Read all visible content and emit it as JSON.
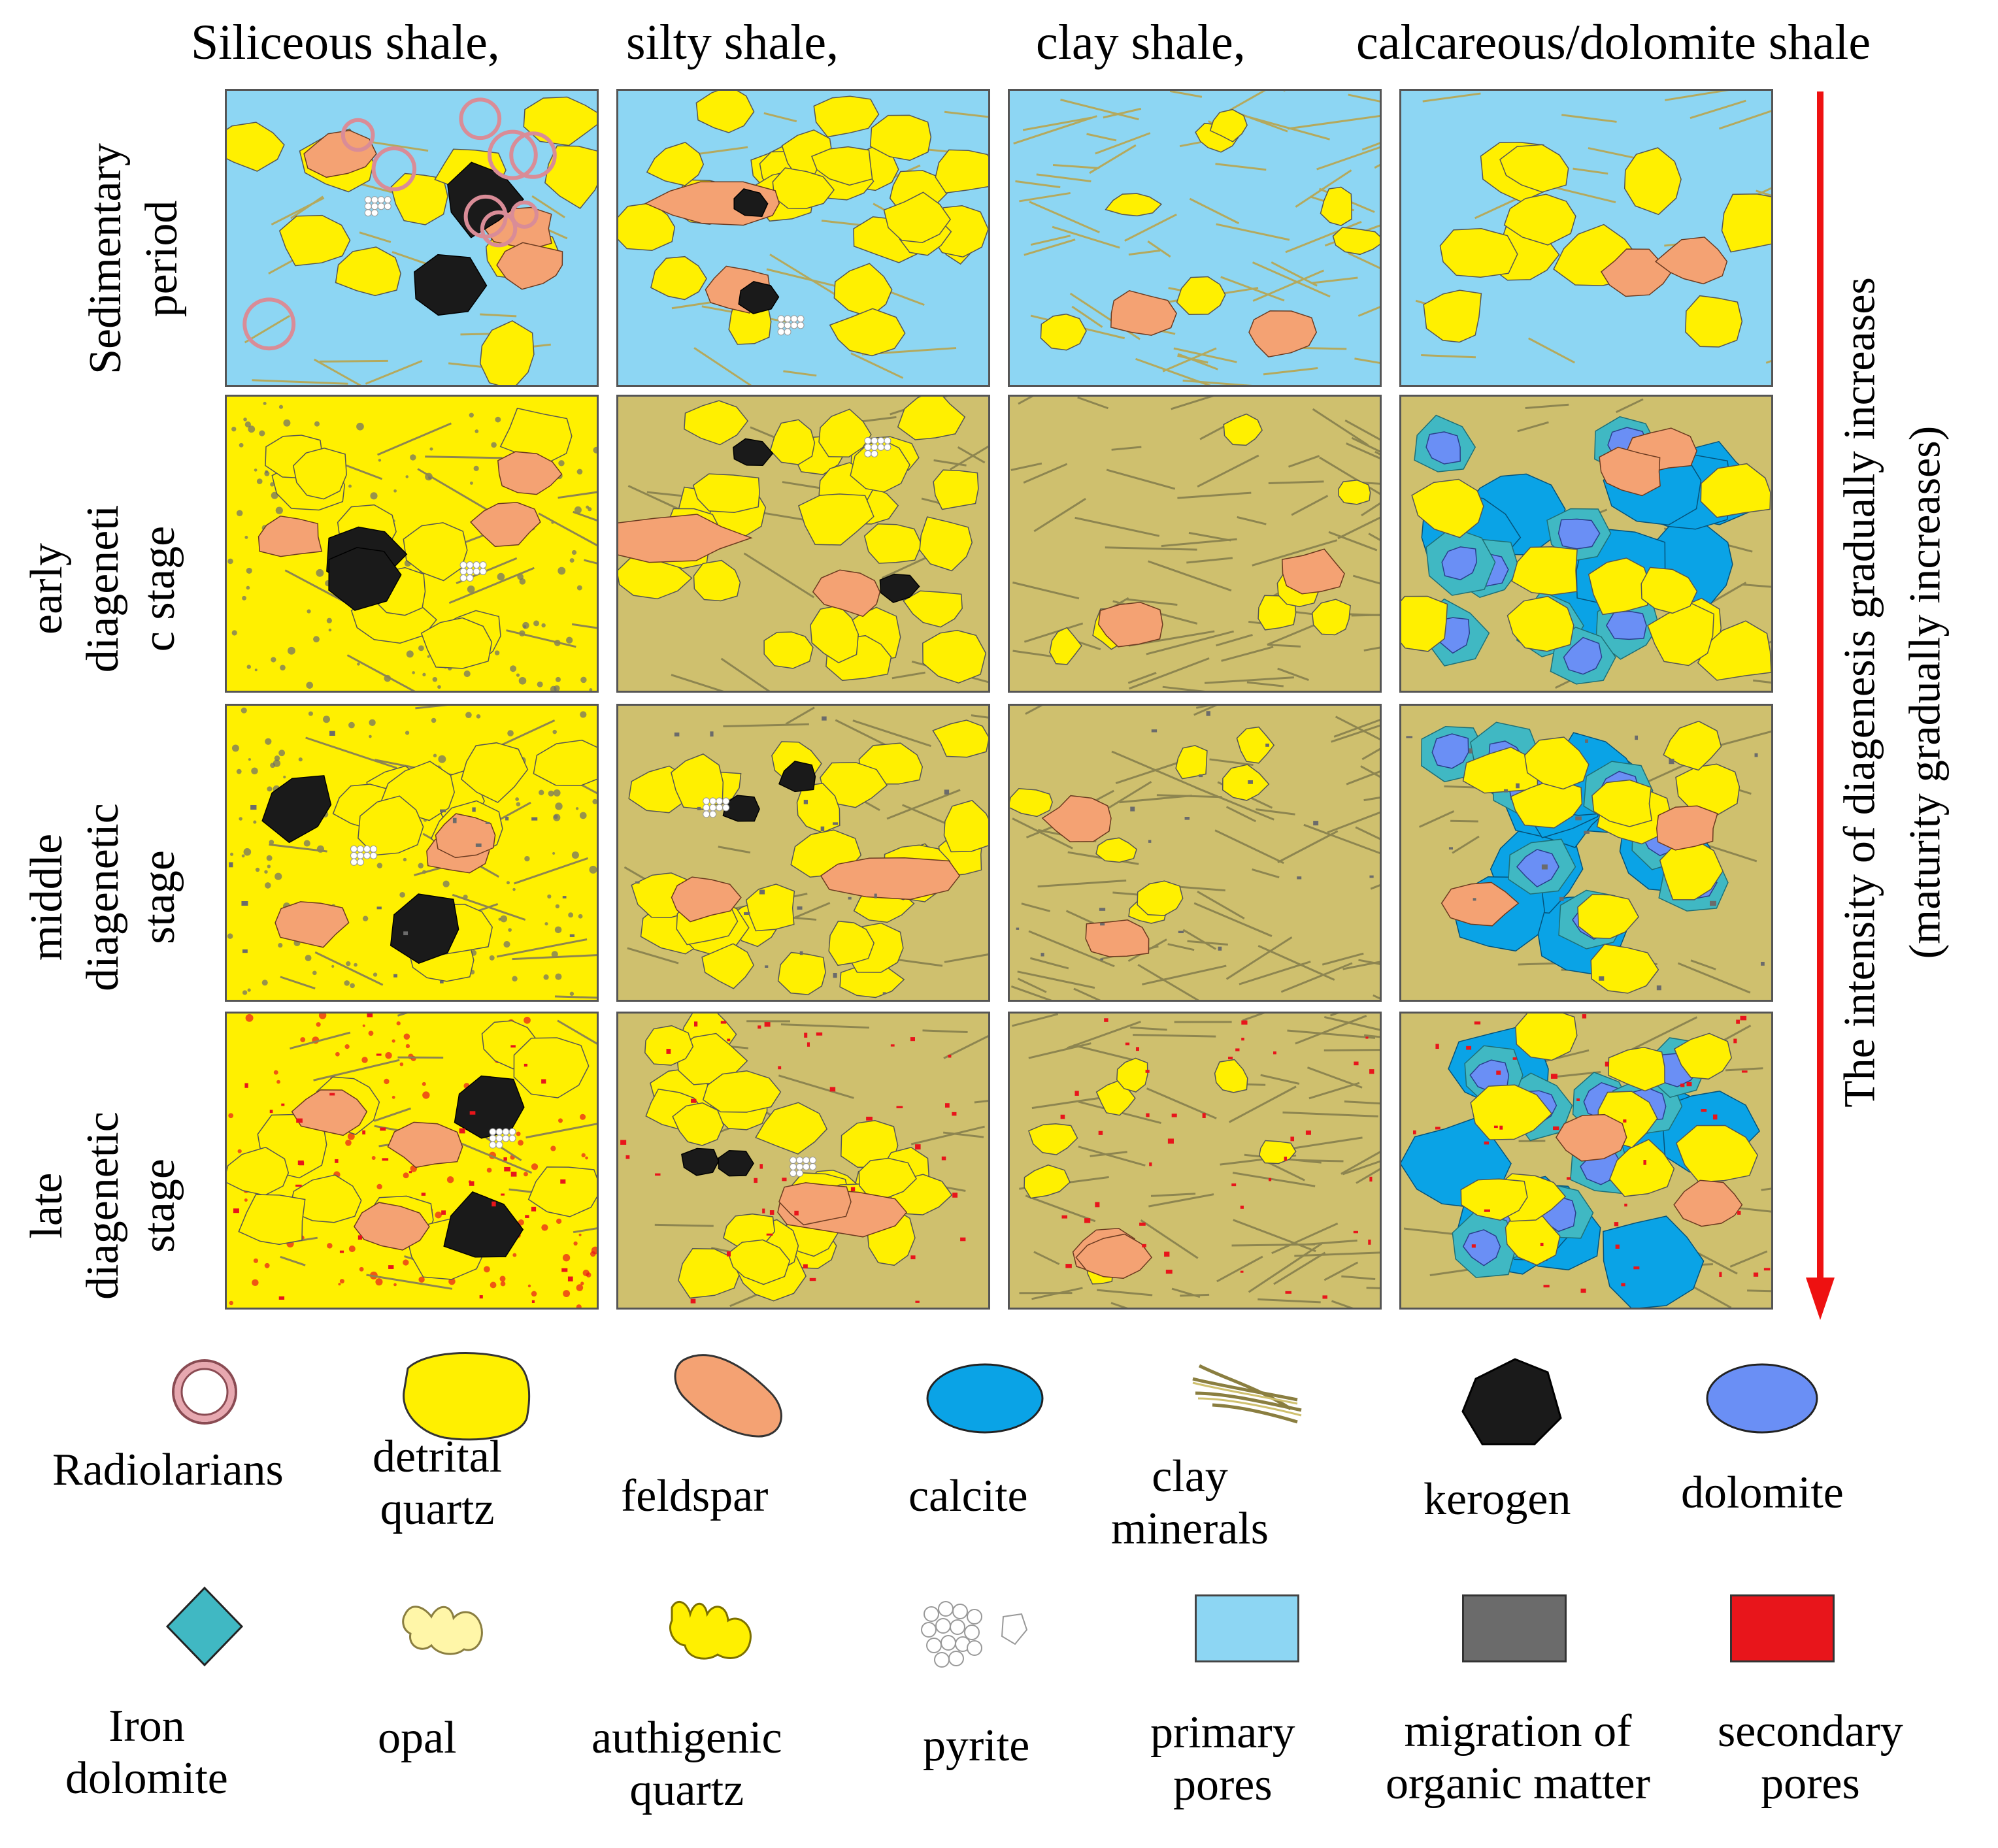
{
  "columns": [
    "Siliceous shale,",
    "silty shale,",
    "clay shale,",
    "calcareous/dolomite shale"
  ],
  "rows": [
    [
      "Sedimentary",
      "period"
    ],
    [
      "early",
      "diageneti",
      "c stage"
    ],
    [
      "middle",
      "diagenetic",
      "stage"
    ],
    [
      "late",
      "diagenetic",
      "stage"
    ]
  ],
  "side_label": {
    "line1": "The intensity of diagenesis gradually increases",
    "line2": "(maturity gradually increases)"
  },
  "legend": [
    {
      "name": "radiolarians",
      "lines": [
        "Radiolarians"
      ]
    },
    {
      "name": "detrital-quartz",
      "lines": [
        "detrital",
        "quartz"
      ]
    },
    {
      "name": "feldspar",
      "lines": [
        "feldspar"
      ]
    },
    {
      "name": "calcite",
      "lines": [
        "calcite"
      ]
    },
    {
      "name": "clay-minerals",
      "lines": [
        "clay",
        "minerals"
      ]
    },
    {
      "name": "kerogen",
      "lines": [
        "kerogen"
      ]
    },
    {
      "name": "dolomite",
      "lines": [
        "dolomite"
      ]
    },
    {
      "name": "iron-dolomite",
      "lines": [
        "Iron",
        "dolomite"
      ]
    },
    {
      "name": "opal",
      "lines": [
        "opal"
      ]
    },
    {
      "name": "authigenic-quartz",
      "lines": [
        "authigenic",
        "quartz"
      ]
    },
    {
      "name": "pyrite",
      "lines": [
        "pyrite"
      ]
    },
    {
      "name": "primary-pores",
      "lines": [
        "primary",
        "pores"
      ]
    },
    {
      "name": "migration-organic-matter",
      "lines": [
        "migration of",
        "organic matter"
      ]
    },
    {
      "name": "secondary-pores",
      "lines": [
        "secondary",
        "pores"
      ]
    }
  ],
  "colors": {
    "primary_pore": "#8dd6f3",
    "matrix": "#cfc06e",
    "quartz": "#fff000",
    "feldspar": "#f4a273",
    "calcite": "#0aa3e6",
    "kerogen": "#1a1a1a",
    "dolomite": "#6a8ff5",
    "iron_dolomite": "#40b8c3",
    "organic": "#6b6b6b",
    "secondary": "#e8151b",
    "radiolarian": "#d98c97",
    "arrow": "#ee1111"
  }
}
